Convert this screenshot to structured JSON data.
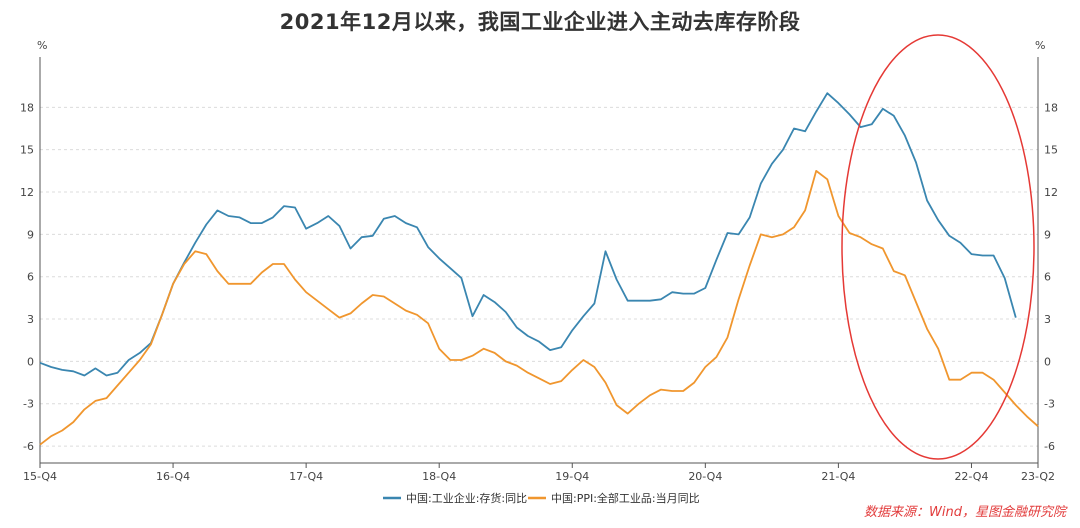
{
  "chart_data": {
    "type": "line",
    "title": "2021年12月以来，我国工业企业进入主动去库存阶段",
    "unit_left": "%",
    "unit_right": "%",
    "ylim": [
      -7.2,
      21
    ],
    "yticks": [
      -6,
      -3,
      0,
      3,
      6,
      9,
      12,
      15,
      18
    ],
    "grid": true,
    "x_tick_labels": [
      "15-Q4",
      "16-Q4",
      "17-Q4",
      "18-Q4",
      "19-Q4",
      "20-Q4",
      "21-Q4",
      "22-Q4",
      "23-Q2"
    ],
    "x_tick_months": [
      0,
      12,
      24,
      36,
      48,
      60,
      72,
      84,
      90
    ],
    "x_range_months": [
      0,
      90
    ],
    "x_start": "2015-10",
    "x_end": "2023-04",
    "legend_position": "bottom-center",
    "series": [
      {
        "name": "中国:工业企业:存货:同比",
        "color": "#3a86b0",
        "x": [
          0,
          1,
          2,
          3,
          4,
          5,
          6,
          7,
          8,
          9,
          10,
          11,
          12,
          13,
          14,
          15,
          16,
          17,
          18,
          19,
          20,
          21,
          22,
          23,
          24,
          25,
          26,
          27,
          28,
          29,
          30,
          31,
          32,
          33,
          34,
          35,
          36,
          37,
          38,
          39,
          40,
          41,
          42,
          43,
          44,
          45,
          46,
          47,
          48,
          49,
          50,
          51,
          52,
          53,
          54,
          55,
          56,
          57,
          58,
          59,
          60,
          61,
          62,
          63,
          64,
          65,
          66,
          67,
          68,
          69,
          70,
          71,
          72,
          73,
          74,
          75,
          76,
          77,
          78,
          79,
          80,
          81,
          82,
          83,
          84,
          85,
          86,
          87,
          88
        ],
        "values": [
          -0.1,
          -0.4,
          -0.6,
          -0.7,
          -1.0,
          -0.5,
          -1.0,
          -0.8,
          0.1,
          0.6,
          1.3,
          3.3,
          5.5,
          7.0,
          8.4,
          9.7,
          10.7,
          10.3,
          10.2,
          9.8,
          9.8,
          10.2,
          11.0,
          10.9,
          9.4,
          9.8,
          10.3,
          9.6,
          8.0,
          8.8,
          8.9,
          10.1,
          10.3,
          9.8,
          9.5,
          8.1,
          7.3,
          6.6,
          5.9,
          3.2,
          4.7,
          4.2,
          3.5,
          2.4,
          1.8,
          1.4,
          0.8,
          1.0,
          2.2,
          3.2,
          4.1,
          7.8,
          5.8,
          4.3,
          4.3,
          4.3,
          4.4,
          4.9,
          4.8,
          4.8,
          5.2,
          7.2,
          9.1,
          9.0,
          10.2,
          12.6,
          14.0,
          15.0,
          16.5,
          16.3,
          17.7,
          19.0,
          18.3,
          17.5,
          16.6,
          16.8,
          17.9,
          17.4,
          16.0,
          14.1,
          11.4,
          10.0,
          8.9,
          8.4,
          7.6,
          7.5,
          7.5,
          5.9,
          3.1
        ]
      },
      {
        "name": "中国:PPI:全部工业品:当月同比",
        "color": "#f0962e",
        "x": [
          0,
          1,
          2,
          3,
          4,
          5,
          6,
          7,
          8,
          9,
          10,
          11,
          12,
          13,
          14,
          15,
          16,
          17,
          18,
          19,
          20,
          21,
          22,
          23,
          24,
          25,
          26,
          27,
          28,
          29,
          30,
          31,
          32,
          33,
          34,
          35,
          36,
          37,
          38,
          39,
          40,
          41,
          42,
          43,
          44,
          45,
          46,
          47,
          48,
          49,
          50,
          51,
          52,
          53,
          54,
          55,
          56,
          57,
          58,
          59,
          60,
          61,
          62,
          63,
          64,
          65,
          66,
          67,
          68,
          69,
          70,
          71,
          72,
          73,
          74,
          75,
          76,
          77,
          78,
          79,
          80,
          81,
          82,
          83,
          84,
          85,
          86,
          87,
          88,
          89,
          90
        ],
        "values": [
          -5.9,
          -5.3,
          -4.9,
          -4.3,
          -3.4,
          -2.8,
          -2.6,
          -1.7,
          -0.8,
          0.1,
          1.2,
          3.3,
          5.5,
          6.9,
          7.8,
          7.6,
          6.4,
          5.5,
          5.5,
          5.5,
          6.3,
          6.9,
          6.9,
          5.8,
          4.9,
          4.3,
          3.7,
          3.1,
          3.4,
          4.1,
          4.7,
          4.6,
          4.1,
          3.6,
          3.3,
          2.7,
          0.9,
          0.1,
          0.1,
          0.4,
          0.9,
          0.6,
          0.0,
          -0.3,
          -0.8,
          -1.2,
          -1.6,
          -1.4,
          -0.6,
          0.1,
          -0.4,
          -1.5,
          -3.1,
          -3.7,
          -3.0,
          -2.4,
          -2.0,
          -2.1,
          -2.1,
          -1.5,
          -0.4,
          0.3,
          1.7,
          4.4,
          6.8,
          9.0,
          8.8,
          9.0,
          9.5,
          10.7,
          13.5,
          12.9,
          10.3,
          9.1,
          8.8,
          8.3,
          8.0,
          6.4,
          6.1,
          4.2,
          2.3,
          0.9,
          -1.3,
          -1.3,
          -0.8,
          -0.8,
          -1.3,
          -2.2,
          -3.1,
          -3.9,
          -4.6
        ]
      }
    ],
    "annotation": {
      "type": "ellipse",
      "color": "#e53935",
      "label": ""
    }
  },
  "source_note": "数据来源：Wind，星图金融研究院"
}
